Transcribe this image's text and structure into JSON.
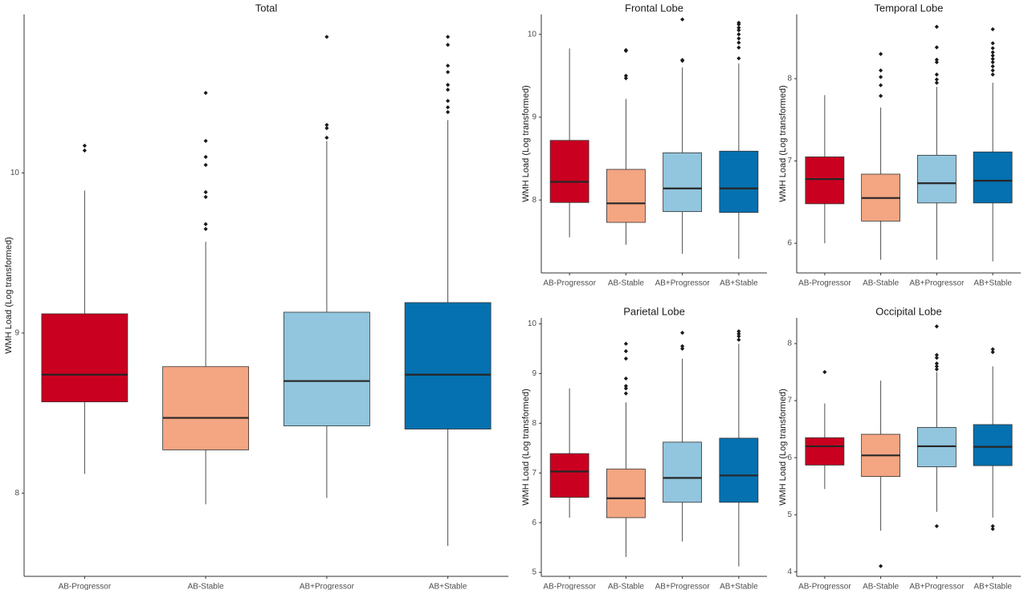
{
  "colors": {
    "AB-Progressor": "#CA0020",
    "AB-Stable": "#F4A582",
    "AB+Progressor": "#92C5DE",
    "AB+Stable": "#0571B0",
    "median": "#262626",
    "whisker": "#4d4d4d",
    "outlier": "#1a1a1a"
  },
  "chart_data": [
    {
      "type": "box",
      "title": "Total",
      "ylabel": "WMH Load (Log transformed)",
      "categories": [
        "AB-Progressor",
        "AB-Stable",
        "AB+Progressor",
        "AB+Stable"
      ],
      "ylim": [
        7.48,
        10.99
      ],
      "yticks": [
        8,
        9,
        10
      ],
      "boxes": [
        {
          "category": "AB-Progressor",
          "whisker_low": 8.12,
          "q1": 8.57,
          "median": 8.74,
          "q3": 9.12,
          "whisker_high": 9.89,
          "outliers": [
            10.14,
            10.17
          ]
        },
        {
          "category": "AB-Stable",
          "whisker_low": 7.93,
          "q1": 8.27,
          "median": 8.47,
          "q3": 8.79,
          "whisker_high": 9.57,
          "outliers": [
            9.65,
            9.68,
            9.85,
            9.88,
            10.05,
            10.1,
            10.2,
            10.5
          ]
        },
        {
          "category": "AB+Progressor",
          "whisker_low": 7.97,
          "q1": 8.42,
          "median": 8.7,
          "q3": 9.13,
          "whisker_high": 10.2,
          "outliers": [
            10.22,
            10.28,
            10.3,
            10.85
          ]
        },
        {
          "category": "AB+Stable",
          "whisker_low": 7.67,
          "q1": 8.4,
          "median": 8.74,
          "q3": 9.19,
          "whisker_high": 10.33,
          "outliers": [
            10.38,
            10.41,
            10.45,
            10.52,
            10.55,
            10.63,
            10.67,
            10.8,
            10.85
          ]
        }
      ]
    },
    {
      "type": "box",
      "title": "Frontal Lobe",
      "ylabel": "WMH Load (Log transformed)",
      "categories": [
        "AB-Progressor",
        "AB-Stable",
        "AB+Progressor",
        "AB+Stable"
      ],
      "ylim": [
        7.12,
        10.24
      ],
      "yticks": [
        8,
        9,
        10
      ],
      "boxes": [
        {
          "category": "AB-Progressor",
          "whisker_low": 7.55,
          "q1": 7.97,
          "median": 8.22,
          "q3": 8.72,
          "whisker_high": 9.83,
          "outliers": []
        },
        {
          "category": "AB-Stable",
          "whisker_low": 7.46,
          "q1": 7.73,
          "median": 7.96,
          "q3": 8.37,
          "whisker_high": 9.22,
          "outliers": [
            9.47,
            9.5,
            9.8,
            9.81
          ]
        },
        {
          "category": "AB+Progressor",
          "whisker_low": 7.35,
          "q1": 7.86,
          "median": 8.14,
          "q3": 8.57,
          "whisker_high": 9.6,
          "outliers": [
            9.68,
            9.69,
            10.18
          ]
        },
        {
          "category": "AB+Stable",
          "whisker_low": 7.29,
          "q1": 7.85,
          "median": 8.14,
          "q3": 8.59,
          "whisker_high": 9.65,
          "outliers": [
            9.71,
            9.84,
            9.9,
            9.95,
            10.0,
            10.05,
            10.08,
            10.12,
            10.14
          ]
        }
      ]
    },
    {
      "type": "box",
      "title": "Temporal Lobe",
      "ylabel": "WMH Load (Log transformed)",
      "categories": [
        "AB-Progressor",
        "AB-Stable",
        "AB+Progressor",
        "AB+Stable"
      ],
      "ylim": [
        5.64,
        8.78
      ],
      "yticks": [
        6,
        7,
        8
      ],
      "boxes": [
        {
          "category": "AB-Progressor",
          "whisker_low": 6.0,
          "q1": 6.48,
          "median": 6.78,
          "q3": 7.05,
          "whisker_high": 7.8,
          "outliers": []
        },
        {
          "category": "AB-Stable",
          "whisker_low": 5.8,
          "q1": 6.27,
          "median": 6.55,
          "q3": 6.84,
          "whisker_high": 7.65,
          "outliers": [
            7.79,
            7.92,
            8.02,
            8.1,
            8.3
          ]
        },
        {
          "category": "AB+Progressor",
          "whisker_low": 5.8,
          "q1": 6.49,
          "median": 6.73,
          "q3": 7.07,
          "whisker_high": 7.9,
          "outliers": [
            7.95,
            7.99,
            8.05,
            8.2,
            8.23,
            8.38,
            8.63
          ]
        },
        {
          "category": "AB+Stable",
          "whisker_low": 5.78,
          "q1": 6.49,
          "median": 6.76,
          "q3": 7.11,
          "whisker_high": 7.95,
          "outliers": [
            8.05,
            8.1,
            8.15,
            8.2,
            8.24,
            8.28,
            8.32,
            8.37,
            8.43,
            8.6
          ]
        }
      ]
    },
    {
      "type": "box",
      "title": "Parietal Lobe",
      "ylabel": "WMH Load (Log transformed)",
      "categories": [
        "AB-Progressor",
        "AB-Stable",
        "AB+Progressor",
        "AB+Stable"
      ],
      "ylim": [
        4.92,
        10.12
      ],
      "yticks": [
        5,
        6,
        7,
        8,
        9,
        10
      ],
      "boxes": [
        {
          "category": "AB-Progressor",
          "whisker_low": 6.1,
          "q1": 6.51,
          "median": 7.03,
          "q3": 7.39,
          "whisker_high": 8.7,
          "outliers": []
        },
        {
          "category": "AB-Stable",
          "whisker_low": 5.31,
          "q1": 6.1,
          "median": 6.49,
          "q3": 7.08,
          "whisker_high": 8.42,
          "outliers": [
            8.6,
            8.7,
            8.75,
            8.9,
            9.3,
            9.45,
            9.6
          ]
        },
        {
          "category": "AB+Progressor",
          "whisker_low": 5.62,
          "q1": 6.41,
          "median": 6.9,
          "q3": 7.62,
          "whisker_high": 9.3,
          "outliers": [
            9.5,
            9.55,
            9.82
          ]
        },
        {
          "category": "AB+Stable",
          "whisker_low": 5.12,
          "q1": 6.41,
          "median": 6.95,
          "q3": 7.7,
          "whisker_high": 9.6,
          "outliers": [
            9.68,
            9.75,
            9.8,
            9.85
          ]
        }
      ]
    },
    {
      "type": "box",
      "title": "Occipital Lobe",
      "ylabel": "WMH Load (Log transformed)",
      "categories": [
        "AB-Progressor",
        "AB-Stable",
        "AB+Progressor",
        "AB+Stable"
      ],
      "ylim": [
        3.92,
        8.45
      ],
      "yticks": [
        4,
        5,
        6,
        7,
        8
      ],
      "boxes": [
        {
          "category": "AB-Progressor",
          "whisker_low": 5.45,
          "q1": 5.87,
          "median": 6.2,
          "q3": 6.35,
          "whisker_high": 6.95,
          "outliers": [
            7.5
          ]
        },
        {
          "category": "AB-Stable",
          "whisker_low": 4.72,
          "q1": 5.67,
          "median": 6.04,
          "q3": 6.41,
          "whisker_high": 7.35,
          "outliers": [
            4.1
          ]
        },
        {
          "category": "AB+Progressor",
          "whisker_low": 5.05,
          "q1": 5.84,
          "median": 6.2,
          "q3": 6.53,
          "whisker_high": 7.5,
          "outliers": [
            4.8,
            7.55,
            7.6,
            7.65,
            7.75,
            7.8,
            8.3
          ]
        },
        {
          "category": "AB+Stable",
          "whisker_low": 4.95,
          "q1": 5.86,
          "median": 6.19,
          "q3": 6.58,
          "whisker_high": 7.6,
          "outliers": [
            4.75,
            4.8,
            7.85,
            7.9
          ]
        }
      ]
    }
  ]
}
